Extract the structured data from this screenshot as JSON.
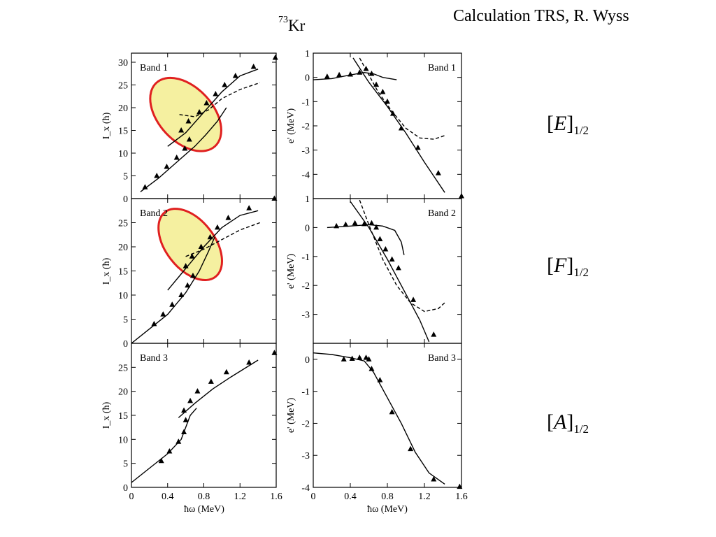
{
  "header": {
    "credit": "Calculation TRS, R. Wyss",
    "nucleus_mass": "73",
    "nucleus_symbol": "Kr"
  },
  "configurations": [
    {
      "bracket_open": "[",
      "letter": "E",
      "bracket_close": "]",
      "subscript": "1/2"
    },
    {
      "bracket_open": "[",
      "letter": "F",
      "bracket_close": "]",
      "subscript": "1/2"
    },
    {
      "bracket_open": "[",
      "letter": "A",
      "bracket_close": "]",
      "subscript": "1/2"
    }
  ],
  "axis_text": {
    "left_ylabel": "I_x (ħ)",
    "right_ylabel": "e' (MeV)",
    "xlabel": "ħω (MeV)"
  },
  "chart_data": [
    {
      "type": "scatter",
      "column": "left",
      "row": 0,
      "label": "Band 1",
      "xlim": [
        0,
        1.6
      ],
      "ylim": [
        0,
        32
      ],
      "xticks": [
        0,
        0.4,
        0.8,
        1.2,
        1.6
      ],
      "yticks": [
        0,
        5,
        10,
        15,
        20,
        25,
        30
      ],
      "highlight": {
        "cx": 0.6,
        "cy": 18.5,
        "rx": 0.3,
        "ry": 9.5,
        "rotation_deg": 43,
        "fill": "#f5f0a0",
        "stroke": "#e02020"
      },
      "points": [
        [
          0.15,
          2.5
        ],
        [
          0.28,
          5
        ],
        [
          0.39,
          7
        ],
        [
          0.5,
          9
        ],
        [
          0.59,
          11
        ],
        [
          0.64,
          13
        ],
        [
          0.55,
          15
        ],
        [
          0.63,
          17
        ],
        [
          0.75,
          19
        ],
        [
          0.83,
          21
        ],
        [
          0.93,
          23
        ],
        [
          1.03,
          25
        ],
        [
          1.15,
          27
        ],
        [
          1.35,
          29
        ],
        [
          1.59,
          31
        ]
      ],
      "series": [
        {
          "style": "solid",
          "values": [
            [
              0.1,
              1.5
            ],
            [
              0.3,
              4.5
            ],
            [
              0.5,
              8
            ],
            [
              0.7,
              11.5
            ],
            [
              0.82,
              14
            ],
            [
              0.95,
              17
            ],
            [
              1.05,
              20
            ]
          ]
        },
        {
          "style": "solid",
          "values": [
            [
              0.4,
              11.5
            ],
            [
              0.6,
              14.5
            ],
            [
              0.8,
              19
            ],
            [
              1.0,
              23.5
            ],
            [
              1.2,
              27
            ],
            [
              1.4,
              28.5
            ]
          ]
        },
        {
          "style": "dashed",
          "values": [
            [
              0.53,
              18.5
            ],
            [
              0.7,
              18
            ],
            [
              0.85,
              19.5
            ],
            [
              1.0,
              22
            ],
            [
              1.2,
              24
            ],
            [
              1.42,
              25.5
            ]
          ]
        }
      ]
    },
    {
      "type": "scatter",
      "column": "left",
      "row": 1,
      "label": "Band 2",
      "xlim": [
        0,
        1.6
      ],
      "ylim": [
        0,
        30
      ],
      "xticks": [
        0,
        0.4,
        0.8,
        1.2,
        1.6
      ],
      "yticks": [
        0,
        5,
        10,
        15,
        20,
        25
      ],
      "highlight": {
        "cx": 0.65,
        "cy": 20.5,
        "rx": 0.27,
        "ry": 8.5,
        "rotation_deg": 38,
        "fill": "#f5f0a0",
        "stroke": "#e02020"
      },
      "points": [
        [
          0.25,
          4
        ],
        [
          0.35,
          6
        ],
        [
          0.45,
          8
        ],
        [
          0.55,
          10
        ],
        [
          0.62,
          12
        ],
        [
          0.68,
          14
        ],
        [
          0.6,
          16
        ],
        [
          0.67,
          18
        ],
        [
          0.77,
          20
        ],
        [
          0.87,
          22
        ],
        [
          0.95,
          24
        ],
        [
          1.07,
          26
        ],
        [
          1.3,
          28
        ],
        [
          1.58,
          30
        ]
      ],
      "series": [
        {
          "style": "solid",
          "values": [
            [
              0,
              0
            ],
            [
              0.2,
              3
            ],
            [
              0.4,
              6
            ],
            [
              0.6,
              10.5
            ],
            [
              0.75,
              15
            ],
            [
              0.85,
              19
            ],
            [
              0.92,
              22
            ]
          ]
        },
        {
          "style": "solid",
          "values": [
            [
              0.4,
              11
            ],
            [
              0.6,
              15.5
            ],
            [
              0.8,
              20
            ],
            [
              1.0,
              24
            ],
            [
              1.2,
              26.5
            ],
            [
              1.4,
              27.5
            ]
          ]
        },
        {
          "style": "dashed",
          "values": [
            [
              0.6,
              18
            ],
            [
              0.8,
              19.5
            ],
            [
              1.0,
              21.5
            ],
            [
              1.2,
              23.5
            ],
            [
              1.42,
              25
            ]
          ]
        }
      ]
    },
    {
      "type": "scatter",
      "column": "left",
      "row": 2,
      "label": "Band 3",
      "xlim": [
        0,
        1.6
      ],
      "ylim": [
        0,
        30
      ],
      "xticks": [
        0,
        0.4,
        0.8,
        1.2,
        1.6
      ],
      "yticks": [
        0,
        5,
        10,
        15,
        20,
        25
      ],
      "points": [
        [
          0.33,
          5.5
        ],
        [
          0.42,
          7.5
        ],
        [
          0.52,
          9.5
        ],
        [
          0.58,
          11.5
        ],
        [
          0.6,
          14
        ],
        [
          0.58,
          16
        ],
        [
          0.65,
          18
        ],
        [
          0.73,
          20
        ],
        [
          0.88,
          22
        ],
        [
          1.05,
          24
        ],
        [
          1.3,
          26
        ],
        [
          1.58,
          28
        ]
      ],
      "series": [
        {
          "style": "solid",
          "values": [
            [
              0,
              1
            ],
            [
              0.2,
              4
            ],
            [
              0.4,
              7
            ],
            [
              0.55,
              10
            ],
            [
              0.6,
              12.5
            ],
            [
              0.65,
              15
            ],
            [
              0.72,
              16.5
            ]
          ]
        },
        {
          "style": "solid",
          "values": [
            [
              0.52,
              14.5
            ],
            [
              0.7,
              17.5
            ],
            [
              0.9,
              20.5
            ],
            [
              1.1,
              23
            ],
            [
              1.4,
              26.5
            ]
          ]
        }
      ]
    },
    {
      "type": "scatter",
      "column": "right",
      "row": 0,
      "label": "Band 1",
      "xlim": [
        0,
        1.6
      ],
      "ylim": [
        -5,
        1
      ],
      "xticks": [
        0,
        0.4,
        0.8,
        1.2,
        1.6
      ],
      "yticks": [
        1,
        0,
        -1,
        -2,
        -3,
        -4
      ],
      "points": [
        [
          0.15,
          0.03
        ],
        [
          0.28,
          0.1
        ],
        [
          0.4,
          0.12
        ],
        [
          0.5,
          0.2
        ],
        [
          0.57,
          0.35
        ],
        [
          0.63,
          0.15
        ],
        [
          0.68,
          -0.3
        ],
        [
          0.75,
          -0.6
        ],
        [
          0.8,
          -1.0
        ],
        [
          0.86,
          -1.5
        ],
        [
          0.95,
          -2.1
        ],
        [
          1.13,
          -2.9
        ],
        [
          1.35,
          -3.95
        ],
        [
          1.6,
          -4.9
        ]
      ],
      "series": [
        {
          "style": "solid",
          "values": [
            [
              0,
              -0.1
            ],
            [
              0.2,
              -0.05
            ],
            [
              0.4,
              0.1
            ],
            [
              0.55,
              0.2
            ],
            [
              0.65,
              0.15
            ],
            [
              0.75,
              0
            ],
            [
              0.9,
              -0.1
            ]
          ]
        },
        {
          "style": "solid",
          "values": [
            [
              0.43,
              0.8
            ],
            [
              0.6,
              -0.2
            ],
            [
              0.8,
              -1.2
            ],
            [
              1.0,
              -2.3
            ],
            [
              1.2,
              -3.5
            ],
            [
              1.42,
              -4.75
            ]
          ]
        },
        {
          "style": "dashed",
          "values": [
            [
              0.5,
              0.8
            ],
            [
              0.7,
              -0.6
            ],
            [
              0.85,
              -1.4
            ],
            [
              1.0,
              -2.1
            ],
            [
              1.15,
              -2.5
            ],
            [
              1.3,
              -2.55
            ],
            [
              1.42,
              -2.4
            ]
          ]
        }
      ]
    },
    {
      "type": "scatter",
      "column": "right",
      "row": 1,
      "label": "Band 2",
      "xlim": [
        0,
        1.6
      ],
      "ylim": [
        -4,
        1
      ],
      "xticks": [
        0,
        0.4,
        0.8,
        1.2,
        1.6
      ],
      "yticks": [
        1,
        0,
        -1,
        -2,
        -3
      ],
      "points": [
        [
          0.25,
          0.05
        ],
        [
          0.35,
          0.1
        ],
        [
          0.45,
          0.15
        ],
        [
          0.55,
          0.12
        ],
        [
          0.63,
          0.15
        ],
        [
          0.68,
          0
        ],
        [
          0.72,
          -0.4
        ],
        [
          0.78,
          -0.75
        ],
        [
          0.85,
          -1.1
        ],
        [
          0.92,
          -1.4
        ],
        [
          1.08,
          -2.5
        ],
        [
          1.3,
          -3.7
        ]
      ],
      "series": [
        {
          "style": "solid",
          "values": [
            [
              0.15,
              0
            ],
            [
              0.4,
              0.05
            ],
            [
              0.6,
              0.1
            ],
            [
              0.75,
              0.05
            ],
            [
              0.88,
              -0.1
            ],
            [
              0.95,
              -0.5
            ],
            [
              0.98,
              -0.95
            ]
          ]
        },
        {
          "style": "solid",
          "values": [
            [
              0.4,
              0.9
            ],
            [
              0.6,
              0
            ],
            [
              0.8,
              -1.1
            ],
            [
              1.0,
              -2.3
            ],
            [
              1.15,
              -3.2
            ],
            [
              1.25,
              -3.95
            ]
          ]
        },
        {
          "style": "dashed",
          "values": [
            [
              0.5,
              0.95
            ],
            [
              0.6,
              0.1
            ],
            [
              0.75,
              -1.1
            ],
            [
              0.9,
              -2.0
            ],
            [
              1.05,
              -2.6
            ],
            [
              1.2,
              -2.9
            ],
            [
              1.35,
              -2.8
            ],
            [
              1.42,
              -2.6
            ]
          ]
        }
      ]
    },
    {
      "type": "scatter",
      "column": "right",
      "row": 2,
      "label": "Band 3",
      "xlim": [
        0,
        1.6
      ],
      "ylim": [
        -4,
        0.5
      ],
      "xticks": [
        0,
        0.4,
        0.8,
        1.2,
        1.6
      ],
      "yticks": [
        0,
        -1,
        -2,
        -3,
        -4
      ],
      "points": [
        [
          0.33,
          0
        ],
        [
          0.42,
          0.02
        ],
        [
          0.5,
          0.05
        ],
        [
          0.57,
          0.05
        ],
        [
          0.6,
          0
        ],
        [
          0.63,
          -0.3
        ],
        [
          0.72,
          -0.65
        ],
        [
          0.85,
          -1.65
        ],
        [
          1.05,
          -2.8
        ],
        [
          1.3,
          -3.75
        ],
        [
          1.58,
          -3.98
        ]
      ],
      "series": [
        {
          "style": "solid",
          "values": [
            [
              0,
              0.2
            ],
            [
              0.2,
              0.15
            ],
            [
              0.4,
              0.05
            ],
            [
              0.55,
              -0.05
            ],
            [
              0.65,
              -0.4
            ],
            [
              0.8,
              -1.2
            ],
            [
              0.95,
              -2.0
            ],
            [
              1.1,
              -2.9
            ],
            [
              1.25,
              -3.55
            ],
            [
              1.42,
              -3.9
            ]
          ]
        }
      ]
    }
  ]
}
